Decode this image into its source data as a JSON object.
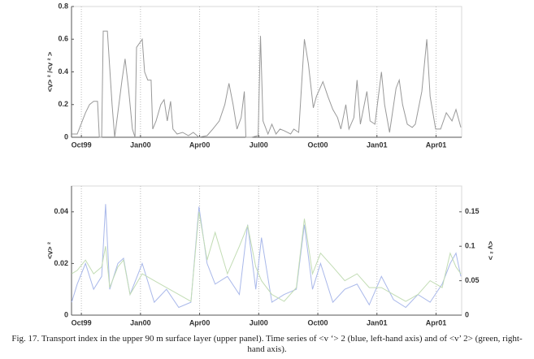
{
  "chart_data": [
    {
      "type": "line",
      "ylabel": "<v> ² /<v ² >",
      "x": [
        -0.49,
        -0.21,
        0.21,
        0.41,
        0.62,
        0.82,
        0.91,
        1.03,
        1.11,
        1.32,
        1.56,
        1.69,
        1.85,
        2.06,
        2.22,
        2.39,
        2.59,
        2.72,
        2.8,
        3.09,
        3.21,
        3.37,
        3.54,
        3.62,
        3.79,
        4.03,
        4.2,
        4.36,
        4.53,
        4.65,
        4.86,
        5.14,
        5.43,
        5.68,
        5.97,
        6.38,
        6.67,
        7.0,
        7.28,
        7.49,
        7.7,
        7.9,
        8.11,
        8.27,
        8.35,
        8.64,
        8.97,
        9.09,
        9.22,
        9.47,
        9.67,
        9.88,
        10.08,
        10.29,
        10.62,
        10.78,
        11.03,
        11.32,
        11.52,
        11.77,
        11.93,
        12.26,
        12.51,
        12.76,
        13.0,
        13.17,
        13.42,
        13.58,
        13.83,
        13.99,
        14.16,
        14.49,
        14.65,
        14.9,
        15.23,
        15.39,
        15.64,
        15.97,
        16.13,
        16.3,
        16.54,
        16.79,
        16.95,
        17.28,
        17.53,
        17.7,
        17.98,
        18.23,
        18.52,
        18.81,
        19.01,
        19.26
      ],
      "series": [
        {
          "color": "#999999",
          "values": [
            0.02,
            0.02,
            0.15,
            0.2,
            0.22,
            0.22,
            0,
            0,
            0.65,
            0.65,
            0.2,
            0,
            0.15,
            0.35,
            0.48,
            0.3,
            0.05,
            0,
            0.55,
            0.6,
            0.4,
            0.35,
            0.35,
            0.05,
            0.1,
            0.2,
            0.23,
            0.1,
            0.22,
            0.05,
            0.02,
            0.03,
            0.01,
            0.03,
            0,
            0.01,
            0.05,
            0.1,
            0.2,
            0.33,
            0.2,
            0.05,
            0.12,
            0.28,
            0,
            0,
            0.01,
            0.62,
            0.1,
            0.02,
            0.08,
            0.02,
            0.05,
            0.04,
            0.02,
            0.05,
            0.03,
            0.6,
            0.45,
            0.18,
            0.25,
            0.34,
            0.25,
            0.17,
            0.12,
            0.05,
            0.2,
            0.05,
            0.12,
            0.35,
            0.08,
            0.28,
            0.1,
            0.08,
            0.4,
            0.2,
            0.03,
            0.3,
            0.35,
            0.2,
            0.08,
            0.06,
            0.08,
            0.28,
            0.6,
            0.25,
            0.05,
            0.05,
            0.15,
            0.1,
            0.17,
            0.06
          ]
        }
      ],
      "xlim": [
        -0.5,
        19.3
      ],
      "xticks": [
        {
          "value": 0,
          "label": "Oct99"
        },
        {
          "value": 3,
          "label": "Jan00"
        },
        {
          "value": 6,
          "label": "Apr00"
        },
        {
          "value": 9,
          "label": "Jul00"
        },
        {
          "value": 12,
          "label": "Oct00"
        },
        {
          "value": 15,
          "label": "Jan01"
        },
        {
          "value": 18,
          "label": "Apr01"
        }
      ],
      "ylim": [
        0,
        0.8
      ],
      "yticks": [
        0,
        0.2,
        0.4,
        0.6,
        0.8
      ],
      "grid": "x"
    },
    {
      "type": "line",
      "ylabel": "<v> ²",
      "y2label": "<v ² >",
      "x": [
        -0.49,
        -0.21,
        0.21,
        0.62,
        1.03,
        1.23,
        1.44,
        1.85,
        2.14,
        2.47,
        3.09,
        3.7,
        4.32,
        4.94,
        5.56,
        5.97,
        6.38,
        6.79,
        7.41,
        8.02,
        8.44,
        8.85,
        9.14,
        9.67,
        10.29,
        10.91,
        11.32,
        11.73,
        12.14,
        12.76,
        13.37,
        13.99,
        14.61,
        15.23,
        15.84,
        16.46,
        17.08,
        17.7,
        18.31,
        18.72,
        19.01,
        19.26
      ],
      "series": [
        {
          "color": "#a9b8ea",
          "values": [
            0.005,
            0.012,
            0.02,
            0.01,
            0.015,
            0.043,
            0.01,
            0.02,
            0.022,
            0.008,
            0.02,
            0.005,
            0.01,
            0.003,
            0.005,
            0.042,
            0.02,
            0.012,
            0.015,
            0.008,
            0.035,
            0.01,
            0.03,
            0.005,
            0.008,
            0.01,
            0.035,
            0.01,
            0.02,
            0.005,
            0.01,
            0.012,
            0.004,
            0.015,
            0.006,
            0.003,
            0.008,
            0.005,
            0.012,
            0.02,
            0.024,
            0.015
          ]
        },
        {
          "color": "#c2dcb4",
          "axis": "y2",
          "values": [
            0.06,
            0.065,
            0.08,
            0.06,
            0.07,
            0.1,
            0.04,
            0.07,
            0.08,
            0.03,
            0.06,
            0.05,
            0.04,
            0.03,
            0.02,
            0.15,
            0.08,
            0.12,
            0.06,
            0.1,
            0.13,
            0.07,
            0.05,
            0.03,
            0.02,
            0.04,
            0.14,
            0.06,
            0.09,
            0.07,
            0.05,
            0.06,
            0.04,
            0.04,
            0.03,
            0.02,
            0.03,
            0.05,
            0.04,
            0.09,
            0.07,
            0.06
          ]
        }
      ],
      "xlim": [
        -0.5,
        19.3
      ],
      "xticks": [
        {
          "value": 0,
          "label": "Oct99"
        },
        {
          "value": 3,
          "label": "Jan00"
        },
        {
          "value": 6,
          "label": "Apr00"
        },
        {
          "value": 9,
          "label": "Jul00"
        },
        {
          "value": 12,
          "label": "Oct00"
        },
        {
          "value": 15,
          "label": "Jan01"
        },
        {
          "value": 18,
          "label": "Apr01"
        }
      ],
      "ylim": [
        0,
        0.05
      ],
      "yticks": [
        0,
        0.02,
        0.04
      ],
      "y2lim": [
        0,
        0.1875
      ],
      "y2ticks": [
        0,
        0.05,
        0.1,
        0.15
      ],
      "grid": "x"
    }
  ],
  "caption": "Fig. 17. Transport index in the upper 90 m surface layer (upper panel). Time series of  <v ‘> 2  (blue, left-hand axis) and of <v’ 2> (green, right-hand axis)."
}
